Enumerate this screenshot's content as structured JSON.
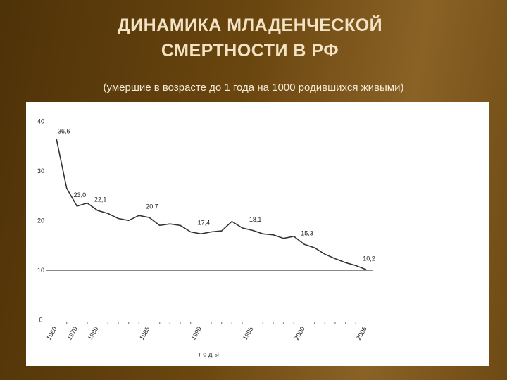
{
  "chart_data": {
    "type": "line",
    "title": "ДИНАМИКА МЛАДЕНЧЕСКОЙ СМЕРТНОСТИ В РФ",
    "subtitle": "(умершие в возрасте до 1 года на 1000 родившихся живыми)",
    "x_label": "годы",
    "categories": [
      "1960",
      null,
      "1970",
      null,
      "1980",
      null,
      null,
      null,
      null,
      "1985",
      null,
      null,
      null,
      null,
      "1990",
      null,
      null,
      null,
      null,
      "1995",
      null,
      null,
      null,
      null,
      "2000",
      null,
      null,
      null,
      null,
      null,
      "2006"
    ],
    "values": [
      36.6,
      26.6,
      23.0,
      23.6,
      22.1,
      21.5,
      20.5,
      20.1,
      21.1,
      20.7,
      19.1,
      19.4,
      19.1,
      17.8,
      17.4,
      17.8,
      18.0,
      19.9,
      18.6,
      18.1,
      17.4,
      17.2,
      16.5,
      16.9,
      15.3,
      14.6,
      13.3,
      12.4,
      11.6,
      11.0,
      10.2
    ],
    "value_labels": [
      "36,6",
      null,
      "23,0",
      null,
      "22,1",
      null,
      null,
      null,
      null,
      "20,7",
      null,
      null,
      null,
      null,
      "17,4",
      null,
      null,
      null,
      null,
      "18,1",
      null,
      null,
      null,
      null,
      "15,3",
      null,
      null,
      null,
      null,
      null,
      "10,2"
    ],
    "color": "#333333",
    "ylim": [
      0,
      40
    ],
    "yticks": [
      0,
      10,
      20,
      30,
      40
    ],
    "reference_line": 10
  }
}
